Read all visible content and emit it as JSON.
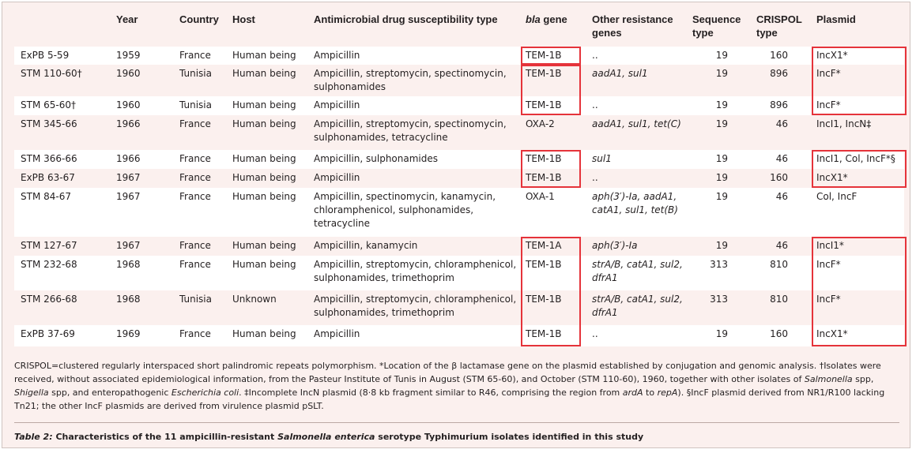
{
  "table": {
    "headers": {
      "isolate": "",
      "year": "Year",
      "country": "Country",
      "host": "Host",
      "susceptibility": "Antimicrobial drug susceptibility type",
      "bla": "bla",
      "bla_suffix": " gene",
      "other_line1": "Other resistance",
      "other_line2": "genes",
      "seq_line1": "Sequence",
      "seq_line2": "type",
      "crispol_line1": "CRISPOL",
      "crispol_line2": "type",
      "plasmid": "Plasmid"
    },
    "rows": [
      {
        "isolate": "ExPB 5-59",
        "year": "1959",
        "country": "France",
        "host": "Human being",
        "susc1": "Ampicillin",
        "susc2": "",
        "susc3": "",
        "bla": "TEM-1B",
        "other1": "..",
        "other2": "",
        "other3": "",
        "seq": "19",
        "crispol": "160",
        "plasmid": "IncX1*"
      },
      {
        "isolate": "STM 110-60†",
        "year": "1960",
        "country": "Tunisia",
        "host": "Human being",
        "susc1": "Ampicillin, streptomycin, spectinomycin,",
        "susc2": "sulphonamides",
        "susc3": "",
        "bla": "TEM-1B",
        "other1": "aadA1, sul1",
        "other2": "",
        "other3": "",
        "seq": "19",
        "crispol": "896",
        "plasmid": "IncF*"
      },
      {
        "isolate": "STM 65-60†",
        "year": "1960",
        "country": "Tunisia",
        "host": "Human being",
        "susc1": "Ampicillin",
        "susc2": "",
        "susc3": "",
        "bla": "TEM-1B",
        "other1": "..",
        "other2": "",
        "other3": "",
        "seq": "19",
        "crispol": "896",
        "plasmid": "IncF*"
      },
      {
        "isolate": "STM 345-66",
        "year": "1966",
        "country": "France",
        "host": "Human being",
        "susc1": "Ampicillin, streptomycin, spectinomycin,",
        "susc2": "sulphonamides, tetracycline",
        "susc3": "",
        "bla": "OXA-2",
        "other1": "aadA1, sul1, tet(C)",
        "other2": "",
        "other3": "",
        "seq": "19",
        "crispol": "46",
        "plasmid": "IncI1, IncN‡"
      },
      {
        "isolate": "STM 366-66",
        "year": "1966",
        "country": "France",
        "host": "Human being",
        "susc1": "Ampicillin, sulphonamides",
        "susc2": "",
        "susc3": "",
        "bla": "TEM-1B",
        "other1": "sul1",
        "other2": "",
        "other3": "",
        "seq": "19",
        "crispol": "46",
        "plasmid": "IncI1, Col, IncF*§"
      },
      {
        "isolate": "ExPB 63-67",
        "year": "1967",
        "country": "France",
        "host": "Human being",
        "susc1": "Ampicillin",
        "susc2": "",
        "susc3": "",
        "bla": "TEM-1B",
        "other1": "..",
        "other2": "",
        "other3": "",
        "seq": "19",
        "crispol": "160",
        "plasmid": "IncX1*"
      },
      {
        "isolate": "STM 84-67",
        "year": "1967",
        "country": "France",
        "host": "Human being",
        "susc1": "Ampicillin, spectinomycin, kanamycin,",
        "susc2": "chloramphenicol, sulphonamides,",
        "susc3": "tetracycline",
        "bla": "OXA-1",
        "other1": "aph(3′)-Ia, aadA1,",
        "other2": "catA1, sul1, tet(B)",
        "other3": "",
        "seq": "19",
        "crispol": "46",
        "plasmid": "Col, IncF"
      },
      {
        "isolate": "STM 127-67",
        "year": "1967",
        "country": "France",
        "host": "Human being",
        "susc1": "Ampicillin, kanamycin",
        "susc2": "",
        "susc3": "",
        "bla": "TEM-1A",
        "other1": "aph(3′)-Ia",
        "other2": "",
        "other3": "",
        "seq": "19",
        "crispol": "46",
        "plasmid": "IncI1*"
      },
      {
        "isolate": "STM 232-68",
        "year": "1968",
        "country": "France",
        "host": "Human being",
        "susc1": "Ampicillin, streptomycin, chloramphenicol,",
        "susc2": "sulphonamides, trimethoprim",
        "susc3": "",
        "bla": "TEM-1B",
        "other1": "strA/B, catA1, sul2,",
        "other2": "dfrA1",
        "other3": "",
        "seq": "313",
        "crispol": "810",
        "plasmid": "IncF*"
      },
      {
        "isolate": "STM 266-68",
        "year": "1968",
        "country": "Tunisia",
        "host": "Unknown",
        "susc1": "Ampicillin, streptomycin, chloramphenicol,",
        "susc2": "sulphonamides, trimethoprim",
        "susc3": "",
        "bla": "TEM-1B",
        "other1": "strA/B, catA1, sul2,",
        "other2": "dfrA1",
        "other3": "",
        "seq": "313",
        "crispol": "810",
        "plasmid": "IncF*"
      },
      {
        "isolate": "ExPB 37-69",
        "year": "1969",
        "country": "France",
        "host": "Human being",
        "susc1": "Ampicillin",
        "susc2": "",
        "susc3": "",
        "bla": "TEM-1B",
        "other1": "..",
        "other2": "",
        "other3": "",
        "seq": "19",
        "crispol": "160",
        "plasmid": "IncX1*"
      }
    ]
  },
  "footnote": {
    "p1": "CRISPOL=clustered regularly interspaced short palindromic repeats polymorphism. *Location of the β lactamase gene on the plasmid established by conjugation and genomic analysis. †Isolates were received, without associated epidemiological information, from the Pasteur Institute of Tunis in August (STM 65-60), and October (STM 110-60), 1960, together with other isolates of ",
    "salmonella": "Salmonella",
    "p2": " spp, ",
    "shigella": "Shigella",
    "p3": " spp, and enteropathogenic ",
    "ecoli": "Escherichia coli",
    "p4": ". ‡Incomplete IncN plasmid (8·8 kb fragment similar to R46, comprising the region from ",
    "arda": "ardA",
    "p5": " to ",
    "repa": "repA",
    "p6": "). §IncF plasmid derived from NR1/R100 lacking Tn21; the other IncF plasmids are derived from virulence plasmid pSLT."
  },
  "caption": {
    "label": "Table 2:",
    "text1": " Characteristics of the 11 ampicillin-resistant ",
    "species": "Salmonella enterica",
    "text2": " serotype Typhimurium isolates identified in this study"
  },
  "highlight_color": "#e5333a"
}
